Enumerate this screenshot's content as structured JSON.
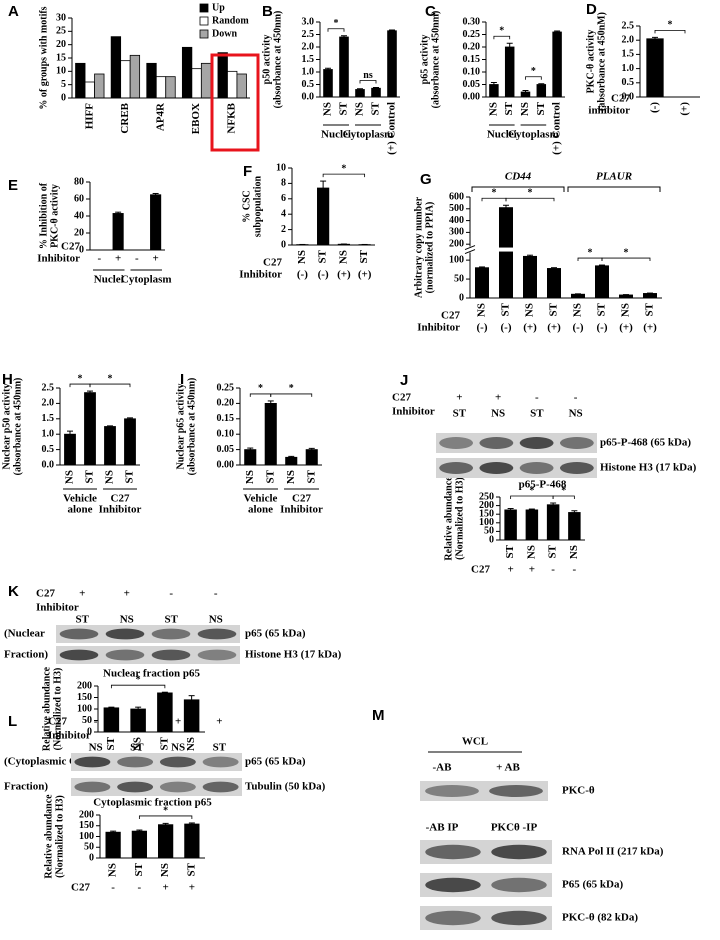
{
  "chart_data": [
    {
      "type": "bar",
      "panel": "A",
      "ylabel": [
        "% of groups with motifs"
      ],
      "categories": [
        "HIFF",
        "CREB",
        "AP4R",
        "EBOX",
        "NFKB"
      ],
      "series": [
        {
          "name": "Up",
          "color": "#000000",
          "values": [
            13,
            23,
            13,
            19,
            17
          ]
        },
        {
          "name": "Random",
          "color": "#ffffff",
          "values": [
            6,
            14,
            8,
            11,
            10
          ]
        },
        {
          "name": "Down",
          "color": "#a6a6a6",
          "values": [
            9,
            16,
            8,
            13,
            9
          ]
        }
      ],
      "ylim": [
        0,
        30
      ],
      "yticks": [
        0,
        5,
        10,
        15,
        20,
        25,
        30
      ]
    },
    {
      "type": "bar",
      "panel": "B",
      "ylabel": [
        "p50 activity",
        "(absorbance at 450nm)"
      ],
      "categories": [
        "NS",
        "ST",
        "NS",
        "ST",
        "(+) Control"
      ],
      "series": [
        {
          "color": "#000000",
          "values": [
            1.1,
            2.4,
            0.3,
            0.35,
            2.65
          ],
          "errors": [
            0.05,
            0.05,
            0.03,
            0.03,
            0.03
          ]
        }
      ],
      "ylim": [
        0,
        3
      ],
      "yticks": [
        {
          "value": 0,
          "label": "0.0"
        },
        0.5,
        {
          "value": 1,
          "label": "1.0"
        },
        1.5,
        {
          "value": 2,
          "label": "2.0"
        },
        2.5,
        {
          "value": 3,
          "label": "3.0"
        }
      ],
      "groups": [
        {
          "label": "Nuclei",
          "bars": [
            0,
            1
          ]
        },
        {
          "label": "Cytoplasm",
          "bars": [
            2,
            3
          ]
        }
      ],
      "significance": [
        {
          "label": "*",
          "bars": [
            0,
            1
          ]
        },
        {
          "label": "ns",
          "bars": [
            2,
            3
          ]
        }
      ]
    },
    {
      "type": "bar",
      "panel": "C",
      "ylabel": [
        "p65 activity",
        "(absorbance at 450nm)"
      ],
      "categories": [
        "NS",
        "ST",
        "NS",
        "ST",
        "(+) Control"
      ],
      "series": [
        {
          "color": "#000000",
          "values": [
            0.05,
            0.2,
            0.02,
            0.05,
            0.26
          ],
          "errors": [
            0.008,
            0.015,
            0.006,
            0.003,
            0.004
          ]
        }
      ],
      "ylim": [
        0,
        0.3
      ],
      "yticks": [
        {
          "value": 0,
          "label": "0.00"
        },
        0.05,
        {
          "value": 0.1,
          "label": "0.10"
        },
        0.15,
        {
          "value": 0.2,
          "label": "0.20"
        },
        0.25,
        {
          "value": 0.3,
          "label": "0.30"
        }
      ],
      "groups": [
        {
          "label": "Nuclei",
          "bars": [
            0,
            1
          ]
        },
        {
          "label": "Cytoplasm",
          "bars": [
            2,
            3
          ]
        }
      ],
      "significance": [
        {
          "label": "*",
          "bars": [
            0,
            1
          ]
        },
        {
          "label": "*",
          "bars": [
            2,
            3
          ]
        }
      ]
    },
    {
      "type": "bar",
      "panel": "D",
      "ylabel": [
        "PKC-θ activity",
        "(absorbance at 450nM)"
      ],
      "categories": [
        "(-)",
        "(+)"
      ],
      "series": [
        {
          "color": "#000000",
          "values": [
            2.05,
            0
          ],
          "errors": [
            0.05,
            0
          ]
        }
      ],
      "ylim": [
        0,
        2.5
      ],
      "yticks": [
        {
          "value": 0,
          "label": "0.0"
        },
        0.5,
        {
          "value": 1,
          "label": "1.0"
        },
        1.5,
        {
          "value": 2,
          "label": "2.0"
        },
        2.5
      ],
      "row_label": [
        "C27",
        "inhibitor"
      ],
      "significance": [
        {
          "label": "*",
          "bars": [
            0,
            1
          ]
        }
      ]
    },
    {
      "type": "bar",
      "panel": "E",
      "ylabel": [
        "% Inhibition of",
        "PKC-θ activity"
      ],
      "categories": [
        "-",
        "+",
        "-",
        "+"
      ],
      "series": [
        {
          "color": "#000000",
          "values": [
            null,
            43,
            null,
            65
          ],
          "errors": [
            null,
            1.5,
            null,
            1.5
          ]
        }
      ],
      "ylim": [
        0,
        80
      ],
      "yticks": [
        0,
        20,
        40,
        60,
        80
      ],
      "row_label": [
        "C27",
        "Inhibitor"
      ],
      "groups": [
        {
          "label": "Nuclei",
          "bars": [
            0,
            1
          ]
        },
        {
          "label": "Cytoplasm",
          "bars": [
            2,
            3
          ]
        }
      ]
    },
    {
      "type": "bar",
      "panel": "F",
      "ylabel": [
        "% CSC",
        "subpopulation"
      ],
      "categories": [
        "NS",
        "ST",
        "NS",
        "ST"
      ],
      "series": [
        {
          "color": "#000000",
          "values": [
            0.05,
            7.4,
            0.1,
            0.05
          ],
          "errors": [
            0.02,
            0.9,
            0.03,
            0.02
          ]
        }
      ],
      "ylim": [
        0,
        10
      ],
      "yticks": [
        0,
        2,
        4,
        6,
        8,
        10
      ],
      "row_label": [
        "C27",
        "Inhibitor"
      ],
      "row": [
        "(-)",
        "(-)",
        "(+)",
        "(+)"
      ],
      "significance": [
        {
          "label": "*",
          "bars": [
            1,
            3
          ]
        }
      ]
    },
    {
      "type": "bar",
      "panel": "G",
      "ylabel": [
        "Arbitrary copy number",
        "(normalized to PPIA)"
      ],
      "categories": [
        "NS",
        "ST",
        "NS",
        "ST",
        "NS",
        "ST",
        "NS",
        "ST"
      ],
      "series": [
        {
          "color": "#000000",
          "values": [
            80,
            510,
            110,
            78,
            10,
            85,
            8,
            12
          ],
          "errors": [
            2,
            20,
            3,
            2,
            1,
            2,
            1,
            1
          ]
        }
      ],
      "ylim": [
        0,
        600
      ],
      "ybreak": [
        120,
        180
      ],
      "yticks": [
        0,
        50,
        100,
        200,
        300,
        400,
        500,
        600
      ],
      "headers": [
        {
          "label": "CD44",
          "bars": [
            0,
            3
          ]
        },
        {
          "label": "PLAUR",
          "bars": [
            4,
            7
          ]
        }
      ],
      "row_label": [
        "C27",
        "Inhibitor"
      ],
      "row": [
        "(-)",
        "(-)",
        "(+)",
        "(+)",
        "(-)",
        "(-)",
        "(+)",
        "(+)"
      ],
      "significance": [
        {
          "label": "*",
          "bars": [
            0,
            1
          ]
        },
        {
          "label": "*",
          "bars": [
            1,
            3
          ]
        },
        {
          "label": "*",
          "bars": [
            4,
            5
          ]
        },
        {
          "label": "*",
          "bars": [
            5,
            7
          ]
        }
      ]
    },
    {
      "type": "bar",
      "panel": "H",
      "ylabel": [
        "Nuclear p50 activity",
        "(absorbance at 450nm)"
      ],
      "categories": [
        "NS",
        "ST",
        "NS",
        "ST"
      ],
      "series": [
        {
          "color": "#000000",
          "values": [
            1.0,
            2.35,
            1.25,
            1.5
          ],
          "errors": [
            0.1,
            0.05,
            0.02,
            0.03
          ]
        }
      ],
      "ylim": [
        0,
        2.5
      ],
      "yticks": [
        {
          "value": 0,
          "label": "0.0"
        },
        0.5,
        {
          "value": 1,
          "label": "1.0"
        },
        1.5,
        {
          "value": 2,
          "label": "2.0"
        },
        2.5
      ],
      "groups": [
        {
          "label": [
            "Vehicle",
            "alone"
          ],
          "bars": [
            0,
            1
          ]
        },
        {
          "label": [
            "C27",
            "Inhibitor"
          ],
          "bars": [
            2,
            3
          ]
        }
      ],
      "significance": [
        {
          "label": "*",
          "bars": [
            0,
            1
          ]
        },
        {
          "label": "*",
          "bars": [
            1,
            3
          ]
        }
      ]
    },
    {
      "type": "bar",
      "panel": "I",
      "ylabel": [
        "Nuclear p65 activity",
        "(absorbance at 450nm)"
      ],
      "categories": [
        "NS",
        "ST",
        "NS",
        "ST"
      ],
      "series": [
        {
          "color": "#000000",
          "values": [
            0.05,
            0.2,
            0.025,
            0.05
          ],
          "errors": [
            0.005,
            0.008,
            0.003,
            0.004
          ]
        }
      ],
      "ylim": [
        0,
        0.25
      ],
      "yticks": [
        {
          "value": 0,
          "label": "0.00"
        },
        0.05,
        {
          "value": 0.1,
          "label": "0.10"
        },
        0.15,
        {
          "value": 0.2,
          "label": "0.20"
        },
        0.25
      ],
      "groups": [
        {
          "label": [
            "Vehicle",
            "alone"
          ],
          "bars": [
            0,
            1
          ]
        },
        {
          "label": [
            "C27",
            "Inhibitor"
          ],
          "bars": [
            2,
            3
          ]
        }
      ],
      "significance": [
        {
          "label": "*",
          "bars": [
            0,
            1
          ]
        },
        {
          "label": "*",
          "bars": [
            1,
            3
          ]
        }
      ]
    },
    {
      "type": "bar",
      "title": "p65-P-468",
      "ylabel": [
        "Relative abundance",
        "(Normalized to H3)"
      ],
      "categories": [
        "ST",
        "NS",
        "ST",
        "NS"
      ],
      "series": [
        {
          "color": "#000000",
          "values": [
            175,
            175,
            205,
            160
          ],
          "errors": [
            8,
            5,
            10,
            10
          ]
        }
      ],
      "ylim": [
        0,
        250
      ],
      "yticks": [
        0,
        50,
        100,
        150,
        200,
        250
      ],
      "row_label": "C27",
      "row": [
        "+",
        "+",
        "-",
        "-"
      ],
      "significance": [
        {
          "label": "*",
          "bars": [
            0,
            2
          ]
        },
        {
          "label": "*",
          "bars": [
            2,
            3
          ]
        }
      ]
    },
    {
      "type": "bar",
      "title": "Nuclear fraction p65",
      "ylabel": [
        "Relative abundance",
        "(Normalized to H3)"
      ],
      "categories": [
        "ST",
        "NS",
        "ST",
        "NS"
      ],
      "series": [
        {
          "color": "#000000",
          "values": [
            105,
            100,
            170,
            140
          ],
          "errors": [
            3,
            8,
            3,
            18
          ]
        }
      ],
      "ylim": [
        0,
        200
      ],
      "yticks": [
        0,
        50,
        100,
        150,
        200
      ],
      "row_label": "C27",
      "row": [
        "+",
        "+",
        "-",
        "-"
      ],
      "significance": [
        {
          "label": "*",
          "bars": [
            0,
            2
          ]
        }
      ]
    },
    {
      "type": "bar",
      "title": "Cytoplasmic fraction p65",
      "ylabel": [
        "Relative abundance",
        "(Normalized to H3)"
      ],
      "categories": [
        "NS",
        "ST",
        "NS",
        "ST"
      ],
      "series": [
        {
          "color": "#000000",
          "values": [
            120,
            125,
            155,
            158
          ],
          "errors": [
            5,
            5,
            6,
            5
          ]
        }
      ],
      "ylim": [
        0,
        200
      ],
      "yticks": [
        0,
        50,
        100,
        150,
        200
      ],
      "row_label": "C27",
      "row": [
        "-",
        "-",
        "+",
        "+"
      ],
      "significance": [
        {
          "label": "*",
          "bars": [
            1,
            3
          ]
        }
      ]
    }
  ],
  "blots": [
    {
      "panel": "J",
      "row_label": [
        "C27",
        "Inhibitor"
      ],
      "treatment": [
        "+",
        "+",
        "-",
        "-"
      ],
      "lanes": [
        "ST",
        "NS",
        "ST",
        "NS"
      ],
      "bands": [
        "p65-P-468 (65 kDa)",
        "Histone H3 (17 kDa)"
      ]
    },
    {
      "panel": "K",
      "row_label": [
        "C27",
        "Inhibitor"
      ],
      "treatment": [
        "+",
        "+",
        "-",
        "-"
      ],
      "lanes": [
        "ST",
        "NS",
        "ST",
        "NS"
      ],
      "fraction": [
        "(Nuclear",
        "Fraction)"
      ],
      "bands": [
        "p65 (65 kDa)",
        "Histone H3 (17 kDa)"
      ]
    },
    {
      "panel": "L",
      "row_label": [
        "C27",
        "Inhibitor"
      ],
      "treatment": [
        "-",
        "-",
        "+",
        "+"
      ],
      "lanes": [
        "NS",
        "ST",
        "NS",
        "ST"
      ],
      "fraction": [
        "(Cytoplasmic",
        "Fraction)"
      ],
      "bands": [
        "p65 (65 kDa)",
        "Tubulin (50 kDa)"
      ]
    }
  ],
  "coip": {
    "panel": "M",
    "header": "WCL",
    "lanes": [
      "-AB",
      "+ AB"
    ],
    "band": "PKC-θ",
    "ip_lanes": [
      "-AB IP",
      "PKCθ -IP"
    ],
    "ip_bands": [
      "RNA Pol II (217 kDa)",
      "P65 (65 kDa)",
      "PKC-θ (82 kDa)"
    ]
  }
}
